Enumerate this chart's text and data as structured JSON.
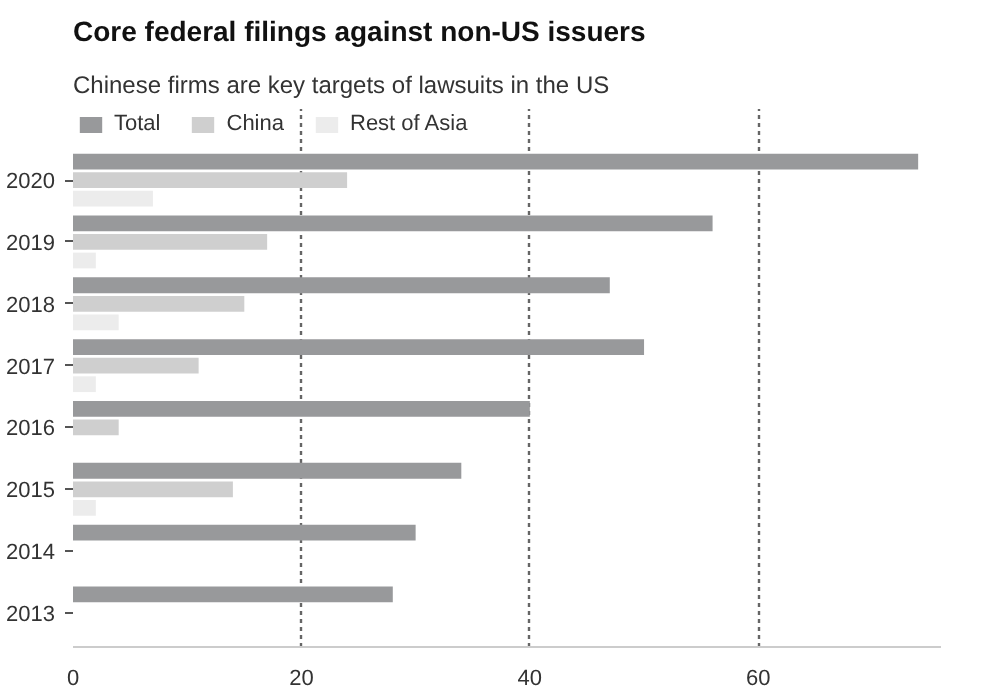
{
  "chart_data": {
    "type": "bar",
    "orientation": "horizontal",
    "title": "Core federal filings against non-US issuers",
    "subtitle": "Chinese firms are key targets of lawsuits in the US",
    "categories": [
      "2020",
      "2019",
      "2018",
      "2017",
      "2016",
      "2015",
      "2014",
      "2013"
    ],
    "series": [
      {
        "name": "Total",
        "color": "#98999b",
        "values": [
          74,
          56,
          47,
          50,
          40,
          34,
          30,
          28
        ]
      },
      {
        "name": "China",
        "color": "#cfcfcf",
        "values": [
          24,
          17,
          15,
          11,
          4,
          14,
          0,
          0
        ]
      },
      {
        "name": "Rest of Asia",
        "color": "#ececec",
        "values": [
          7,
          2,
          4,
          2,
          0,
          2,
          0,
          0
        ]
      }
    ],
    "xlim": [
      0,
      76
    ],
    "xticks": [
      0,
      20,
      40,
      60
    ],
    "grid": "x",
    "legend": "top left"
  }
}
